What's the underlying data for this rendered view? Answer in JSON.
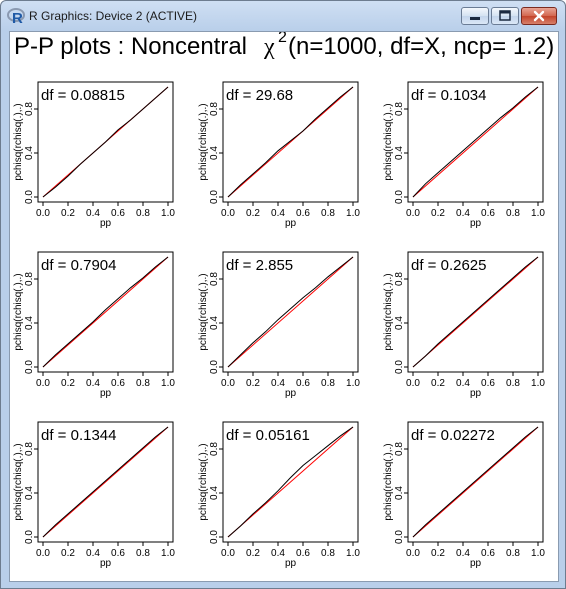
{
  "window": {
    "title": "R Graphics: Device 2 (ACTIVE)",
    "icon": "r-logo-icon",
    "buttons": [
      "minimize-icon",
      "maximize-icon",
      "close-icon"
    ]
  },
  "figure": {
    "title_prefix": "P-P plots : Noncentral",
    "chi_symbol": "χ",
    "superscript": "2",
    "title_suffix": "(n=1000, df=X, ncp= 1.2)"
  },
  "colors": {
    "reference_line": "#ff0000",
    "pp_curve": "#000000",
    "frame": "#000000"
  },
  "chart_data": [
    {
      "type": "line",
      "label": "df =  0.08815",
      "xlabel": "pp",
      "ylabel": "pchisq(rchisq(.),.)",
      "xticks": [
        "0.0",
        "0.2",
        "0.4",
        "0.6",
        "0.8",
        "1.0"
      ],
      "yticks": [
        "0.0",
        "0.4",
        "0.8"
      ],
      "xlim": [
        0,
        1
      ],
      "ylim": [
        0,
        1
      ],
      "series": [
        {
          "x": [
            0,
            0.1,
            0.2,
            0.3,
            0.4,
            0.5,
            0.6,
            0.7,
            0.8,
            0.9,
            1
          ],
          "y": [
            0,
            0.09,
            0.19,
            0.3,
            0.4,
            0.5,
            0.61,
            0.7,
            0.8,
            0.9,
            1
          ]
        }
      ]
    },
    {
      "type": "line",
      "label": "df =  29.68",
      "xlabel": "pp",
      "ylabel": "pchisq(rchisq(.),.)",
      "xticks": [
        "0.0",
        "0.2",
        "0.4",
        "0.6",
        "0.8",
        "1.0"
      ],
      "yticks": [
        "0.0",
        "0.4",
        "0.8"
      ],
      "xlim": [
        0,
        1
      ],
      "ylim": [
        0,
        1
      ],
      "series": [
        {
          "x": [
            0,
            0.1,
            0.2,
            0.3,
            0.4,
            0.5,
            0.6,
            0.7,
            0.8,
            0.9,
            1
          ],
          "y": [
            0,
            0.11,
            0.21,
            0.31,
            0.42,
            0.51,
            0.6,
            0.71,
            0.81,
            0.91,
            1
          ]
        }
      ]
    },
    {
      "type": "line",
      "label": "df =  0.1034",
      "xlabel": "pp",
      "ylabel": "pchisq(rchisq(.),.)",
      "xticks": [
        "0.0",
        "0.2",
        "0.4",
        "0.6",
        "0.8",
        "1.0"
      ],
      "yticks": [
        "0.0",
        "0.4",
        "0.8"
      ],
      "xlim": [
        0,
        1
      ],
      "ylim": [
        0,
        1
      ],
      "series": [
        {
          "x": [
            0,
            0.1,
            0.2,
            0.3,
            0.4,
            0.5,
            0.6,
            0.7,
            0.8,
            0.9,
            1
          ],
          "y": [
            0,
            0.12,
            0.22,
            0.32,
            0.42,
            0.52,
            0.62,
            0.72,
            0.81,
            0.91,
            1
          ]
        }
      ]
    },
    {
      "type": "line",
      "label": "df =  0.7904",
      "xlabel": "pp",
      "ylabel": "pchisq(rchisq(.),.)",
      "xticks": [
        "0.0",
        "0.2",
        "0.4",
        "0.6",
        "0.8",
        "1.0"
      ],
      "yticks": [
        "0.0",
        "0.4",
        "0.8"
      ],
      "xlim": [
        0,
        1
      ],
      "ylim": [
        0,
        1
      ],
      "series": [
        {
          "x": [
            0,
            0.1,
            0.2,
            0.3,
            0.4,
            0.5,
            0.6,
            0.7,
            0.8,
            0.9,
            1
          ],
          "y": [
            0,
            0.11,
            0.21,
            0.31,
            0.41,
            0.52,
            0.62,
            0.72,
            0.81,
            0.91,
            1
          ]
        }
      ]
    },
    {
      "type": "line",
      "label": "df =  2.855",
      "xlabel": "pp",
      "ylabel": "pchisq(rchisq(.),.)",
      "xticks": [
        "0.0",
        "0.2",
        "0.4",
        "0.6",
        "0.8",
        "1.0"
      ],
      "yticks": [
        "0.0",
        "0.4",
        "0.8"
      ],
      "xlim": [
        0,
        1
      ],
      "ylim": [
        0,
        1
      ],
      "series": [
        {
          "x": [
            0,
            0.1,
            0.2,
            0.3,
            0.4,
            0.5,
            0.6,
            0.7,
            0.8,
            0.9,
            1
          ],
          "y": [
            0,
            0.11,
            0.22,
            0.32,
            0.43,
            0.53,
            0.63,
            0.72,
            0.82,
            0.91,
            1
          ]
        }
      ]
    },
    {
      "type": "line",
      "label": "df =  0.2625",
      "xlabel": "pp",
      "ylabel": "pchisq(rchisq(.),.)",
      "xticks": [
        "0.0",
        "0.2",
        "0.4",
        "0.6",
        "0.8",
        "1.0"
      ],
      "yticks": [
        "0.0",
        "0.4",
        "0.8"
      ],
      "xlim": [
        0,
        1
      ],
      "ylim": [
        0,
        1
      ],
      "series": [
        {
          "x": [
            0,
            0.1,
            0.2,
            0.3,
            0.4,
            0.5,
            0.6,
            0.7,
            0.8,
            0.9,
            1
          ],
          "y": [
            0,
            0.1,
            0.21,
            0.31,
            0.41,
            0.51,
            0.61,
            0.71,
            0.81,
            0.91,
            1
          ]
        }
      ]
    },
    {
      "type": "line",
      "label": "df =  0.1344",
      "xlabel": "pp",
      "ylabel": "pchisq(rchisq(.),.)",
      "xticks": [
        "0.0",
        "0.2",
        "0.4",
        "0.6",
        "0.8",
        "1.0"
      ],
      "yticks": [
        "0.0",
        "0.4",
        "0.8"
      ],
      "xlim": [
        0,
        1
      ],
      "ylim": [
        0,
        1
      ],
      "series": [
        {
          "x": [
            0,
            0.1,
            0.2,
            0.3,
            0.4,
            0.5,
            0.6,
            0.7,
            0.8,
            0.9,
            1
          ],
          "y": [
            0,
            0.11,
            0.21,
            0.31,
            0.41,
            0.51,
            0.61,
            0.71,
            0.81,
            0.91,
            1
          ]
        }
      ]
    },
    {
      "type": "line",
      "label": "df =  0.05161",
      "xlabel": "pp",
      "ylabel": "pchisq(rchisq(.),.)",
      "xticks": [
        "0.0",
        "0.2",
        "0.4",
        "0.6",
        "0.8",
        "1.0"
      ],
      "yticks": [
        "0.0",
        "0.4",
        "0.8"
      ],
      "xlim": [
        0,
        1
      ],
      "ylim": [
        0,
        1
      ],
      "series": [
        {
          "x": [
            0,
            0.1,
            0.2,
            0.3,
            0.4,
            0.5,
            0.6,
            0.7,
            0.8,
            0.9,
            1
          ],
          "y": [
            0,
            0.1,
            0.21,
            0.31,
            0.42,
            0.54,
            0.65,
            0.74,
            0.83,
            0.92,
            1
          ]
        }
      ]
    },
    {
      "type": "line",
      "label": "df =  0.02272",
      "xlabel": "pp",
      "ylabel": "pchisq(rchisq(.),.)",
      "xticks": [
        "0.0",
        "0.2",
        "0.4",
        "0.6",
        "0.8",
        "1.0"
      ],
      "yticks": [
        "0.0",
        "0.4",
        "0.8"
      ],
      "xlim": [
        0,
        1
      ],
      "ylim": [
        0,
        1
      ],
      "series": [
        {
          "x": [
            0,
            0.1,
            0.2,
            0.3,
            0.4,
            0.5,
            0.6,
            0.7,
            0.8,
            0.9,
            1
          ],
          "y": [
            0,
            0.11,
            0.21,
            0.31,
            0.41,
            0.51,
            0.61,
            0.71,
            0.81,
            0.91,
            1
          ]
        }
      ]
    }
  ]
}
